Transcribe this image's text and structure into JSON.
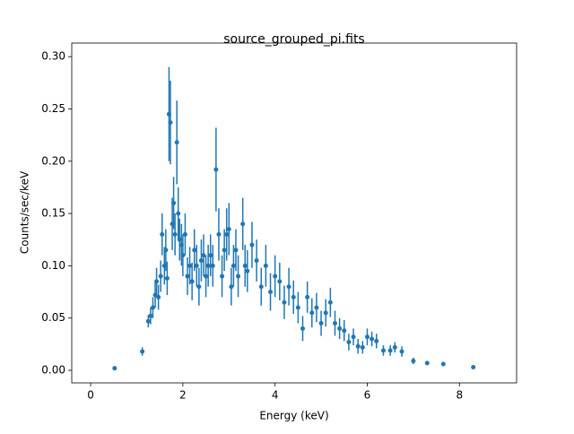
{
  "chart_data": {
    "type": "errorbar",
    "title": "source_grouped_pi.fits",
    "x_label": "Energy (keV)",
    "y_label": "Counts/sec/keV",
    "color": "#1f77b4",
    "x": [
      0.52,
      1.12,
      1.25,
      1.3,
      1.35,
      1.4,
      1.43,
      1.47,
      1.52,
      1.55,
      1.6,
      1.63,
      1.66,
      1.7,
      1.73,
      1.77,
      1.8,
      1.83,
      1.87,
      1.9,
      1.93,
      1.97,
      2.0,
      2.05,
      2.1,
      2.15,
      2.2,
      2.25,
      2.3,
      2.35,
      2.4,
      2.45,
      2.5,
      2.55,
      2.6,
      2.65,
      2.72,
      2.78,
      2.85,
      2.9,
      2.95,
      3.0,
      3.05,
      3.1,
      3.15,
      3.2,
      3.3,
      3.35,
      3.4,
      3.5,
      3.6,
      3.7,
      3.8,
      3.9,
      4.0,
      4.1,
      4.2,
      4.3,
      4.4,
      4.5,
      4.6,
      4.7,
      4.8,
      4.9,
      5.0,
      5.1,
      5.2,
      5.3,
      5.4,
      5.5,
      5.6,
      5.7,
      5.8,
      5.9,
      6.0,
      6.1,
      6.2,
      6.35,
      6.5,
      6.6,
      6.75,
      7.0,
      7.3,
      7.65,
      8.3
    ],
    "values": [
      0.002,
      0.018,
      0.047,
      0.052,
      0.06,
      0.072,
      0.085,
      0.07,
      0.09,
      0.13,
      0.1,
      0.115,
      0.088,
      0.245,
      0.237,
      0.14,
      0.16,
      0.13,
      0.218,
      0.15,
      0.125,
      0.12,
      0.11,
      0.13,
      0.09,
      0.1,
      0.085,
      0.115,
      0.1,
      0.08,
      0.105,
      0.11,
      0.09,
      0.1,
      0.11,
      0.1,
      0.192,
      0.13,
      0.09,
      0.115,
      0.13,
      0.135,
      0.08,
      0.1,
      0.115,
      0.09,
      0.14,
      0.1,
      0.095,
      0.12,
      0.105,
      0.08,
      0.1,
      0.075,
      0.09,
      0.085,
      0.065,
      0.08,
      0.07,
      0.06,
      0.04,
      0.07,
      0.055,
      0.06,
      0.045,
      0.055,
      0.065,
      0.045,
      0.04,
      0.038,
      0.027,
      0.032,
      0.023,
      0.022,
      0.032,
      0.03,
      0.028,
      0.019,
      0.019,
      0.022,
      0.018,
      0.009,
      0.007,
      0.006,
      0.003
    ],
    "errors": [
      0.001,
      0.004,
      0.006,
      0.008,
      0.01,
      0.012,
      0.013,
      0.012,
      0.015,
      0.02,
      0.018,
      0.02,
      0.016,
      0.045,
      0.04,
      0.025,
      0.025,
      0.02,
      0.04,
      0.025,
      0.02,
      0.02,
      0.02,
      0.02,
      0.018,
      0.018,
      0.018,
      0.02,
      0.02,
      0.018,
      0.02,
      0.02,
      0.02,
      0.02,
      0.02,
      0.02,
      0.04,
      0.025,
      0.02,
      0.02,
      0.025,
      0.025,
      0.018,
      0.02,
      0.02,
      0.02,
      0.025,
      0.02,
      0.02,
      0.022,
      0.02,
      0.018,
      0.02,
      0.018,
      0.02,
      0.018,
      0.016,
      0.018,
      0.016,
      0.015,
      0.012,
      0.015,
      0.014,
      0.014,
      0.012,
      0.013,
      0.014,
      0.012,
      0.01,
      0.01,
      0.008,
      0.008,
      0.007,
      0.006,
      0.008,
      0.007,
      0.007,
      0.005,
      0.005,
      0.005,
      0.005,
      0.003,
      0.002,
      0.002,
      0.001
    ],
    "xlim": [
      -0.41,
      9.24
    ],
    "ylim": [
      -0.012,
      0.313
    ],
    "xticks": [
      0,
      2,
      4,
      6,
      8
    ],
    "yticks": [
      {
        "value": 0,
        "label": "0.00"
      },
      {
        "value": 0.05,
        "label": "0.05"
      },
      {
        "value": 0.1,
        "label": "0.10"
      },
      {
        "value": 0.15,
        "label": "0.15"
      },
      {
        "value": 0.2,
        "label": "0.20"
      },
      {
        "value": 0.25,
        "label": "0.25"
      },
      {
        "value": 0.3,
        "label": "0.30"
      }
    ]
  }
}
